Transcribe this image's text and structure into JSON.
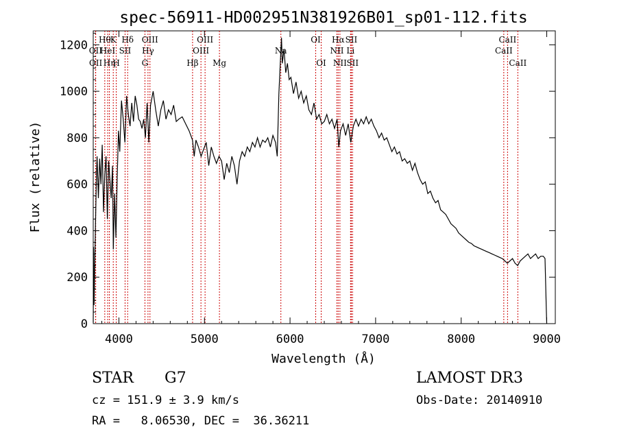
{
  "chart_data": {
    "type": "line",
    "title": "spec-56911-HD002951N381926B01_sp01-112.fits",
    "xlabel": "Wavelength (Å)",
    "ylabel": "Flux (relative)",
    "xlim": [
      3700,
      9100
    ],
    "ylim": [
      0,
      1260
    ],
    "x_ticks": [
      4000,
      5000,
      6000,
      7000,
      8000,
      9000
    ],
    "y_ticks": [
      0,
      200,
      400,
      600,
      800,
      1000,
      1200
    ],
    "grid": false,
    "series": [
      {
        "values": [
          [
            3700,
            5
          ],
          [
            3705,
            330
          ],
          [
            3710,
            80
          ],
          [
            3720,
            300
          ],
          [
            3735,
            600
          ],
          [
            3745,
            720
          ],
          [
            3760,
            540
          ],
          [
            3775,
            710
          ],
          [
            3790,
            600
          ],
          [
            3805,
            770
          ],
          [
            3820,
            480
          ],
          [
            3835,
            640
          ],
          [
            3850,
            720
          ],
          [
            3865,
            450
          ],
          [
            3880,
            700
          ],
          [
            3895,
            620
          ],
          [
            3910,
            540
          ],
          [
            3925,
            680
          ],
          [
            3935,
            320
          ],
          [
            3950,
            560
          ],
          [
            3965,
            370
          ],
          [
            3980,
            620
          ],
          [
            3995,
            830
          ],
          [
            4010,
            740
          ],
          [
            4030,
            960
          ],
          [
            4050,
            880
          ],
          [
            4070,
            780
          ],
          [
            4090,
            980
          ],
          [
            4110,
            900
          ],
          [
            4130,
            850
          ],
          [
            4150,
            950
          ],
          [
            4170,
            870
          ],
          [
            4190,
            980
          ],
          [
            4210,
            940
          ],
          [
            4230,
            880
          ],
          [
            4250,
            870
          ],
          [
            4270,
            840
          ],
          [
            4290,
            880
          ],
          [
            4310,
            800
          ],
          [
            4330,
            950
          ],
          [
            4350,
            780
          ],
          [
            4370,
            940
          ],
          [
            4400,
            1000
          ],
          [
            4430,
            920
          ],
          [
            4460,
            850
          ],
          [
            4490,
            920
          ],
          [
            4520,
            960
          ],
          [
            4550,
            880
          ],
          [
            4580,
            920
          ],
          [
            4610,
            900
          ],
          [
            4640,
            940
          ],
          [
            4670,
            870
          ],
          [
            4700,
            880
          ],
          [
            4740,
            890
          ],
          [
            4780,
            860
          ],
          [
            4820,
            830
          ],
          [
            4860,
            790
          ],
          [
            4880,
            720
          ],
          [
            4900,
            790
          ],
          [
            4930,
            760
          ],
          [
            4960,
            720
          ],
          [
            4990,
            750
          ],
          [
            5020,
            780
          ],
          [
            5050,
            680
          ],
          [
            5080,
            760
          ],
          [
            5110,
            720
          ],
          [
            5140,
            690
          ],
          [
            5170,
            720
          ],
          [
            5200,
            700
          ],
          [
            5230,
            620
          ],
          [
            5260,
            690
          ],
          [
            5290,
            650
          ],
          [
            5320,
            720
          ],
          [
            5350,
            680
          ],
          [
            5380,
            600
          ],
          [
            5410,
            700
          ],
          [
            5440,
            740
          ],
          [
            5470,
            720
          ],
          [
            5500,
            760
          ],
          [
            5530,
            740
          ],
          [
            5560,
            780
          ],
          [
            5590,
            760
          ],
          [
            5620,
            800
          ],
          [
            5650,
            760
          ],
          [
            5680,
            790
          ],
          [
            5710,
            780
          ],
          [
            5740,
            800
          ],
          [
            5770,
            760
          ],
          [
            5800,
            810
          ],
          [
            5830,
            780
          ],
          [
            5850,
            720
          ],
          [
            5870,
            990
          ],
          [
            5890,
            1150
          ],
          [
            5900,
            1230
          ],
          [
            5910,
            1120
          ],
          [
            5930,
            1180
          ],
          [
            5950,
            1080
          ],
          [
            5970,
            1120
          ],
          [
            5990,
            1050
          ],
          [
            6010,
            1060
          ],
          [
            6040,
            990
          ],
          [
            6070,
            1040
          ],
          [
            6100,
            970
          ],
          [
            6130,
            1000
          ],
          [
            6160,
            950
          ],
          [
            6190,
            980
          ],
          [
            6220,
            920
          ],
          [
            6250,
            900
          ],
          [
            6280,
            950
          ],
          [
            6310,
            880
          ],
          [
            6340,
            900
          ],
          [
            6370,
            860
          ],
          [
            6400,
            870
          ],
          [
            6430,
            900
          ],
          [
            6460,
            860
          ],
          [
            6490,
            880
          ],
          [
            6520,
            840
          ],
          [
            6550,
            880
          ],
          [
            6570,
            760
          ],
          [
            6590,
            830
          ],
          [
            6620,
            860
          ],
          [
            6650,
            810
          ],
          [
            6680,
            860
          ],
          [
            6710,
            780
          ],
          [
            6740,
            850
          ],
          [
            6770,
            880
          ],
          [
            6800,
            850
          ],
          [
            6830,
            880
          ],
          [
            6860,
            860
          ],
          [
            6890,
            890
          ],
          [
            6920,
            860
          ],
          [
            6950,
            880
          ],
          [
            6980,
            850
          ],
          [
            7010,
            830
          ],
          [
            7040,
            800
          ],
          [
            7070,
            820
          ],
          [
            7100,
            790
          ],
          [
            7130,
            800
          ],
          [
            7160,
            770
          ],
          [
            7190,
            740
          ],
          [
            7220,
            760
          ],
          [
            7250,
            730
          ],
          [
            7280,
            740
          ],
          [
            7310,
            700
          ],
          [
            7340,
            710
          ],
          [
            7370,
            690
          ],
          [
            7400,
            700
          ],
          [
            7430,
            660
          ],
          [
            7460,
            690
          ],
          [
            7490,
            650
          ],
          [
            7520,
            620
          ],
          [
            7550,
            600
          ],
          [
            7580,
            610
          ],
          [
            7610,
            560
          ],
          [
            7640,
            570
          ],
          [
            7670,
            540
          ],
          [
            7700,
            520
          ],
          [
            7730,
            530
          ],
          [
            7760,
            490
          ],
          [
            7790,
            480
          ],
          [
            7820,
            470
          ],
          [
            7850,
            450
          ],
          [
            7880,
            430
          ],
          [
            7910,
            420
          ],
          [
            7940,
            410
          ],
          [
            7970,
            390
          ],
          [
            8000,
            380
          ],
          [
            8030,
            370
          ],
          [
            8060,
            360
          ],
          [
            8090,
            350
          ],
          [
            8120,
            345
          ],
          [
            8150,
            335
          ],
          [
            8180,
            330
          ],
          [
            8210,
            325
          ],
          [
            8240,
            320
          ],
          [
            8270,
            315
          ],
          [
            8300,
            310
          ],
          [
            8330,
            305
          ],
          [
            8360,
            300
          ],
          [
            8390,
            295
          ],
          [
            8420,
            290
          ],
          [
            8450,
            285
          ],
          [
            8480,
            280
          ],
          [
            8510,
            270
          ],
          [
            8540,
            260
          ],
          [
            8570,
            270
          ],
          [
            8600,
            280
          ],
          [
            8630,
            260
          ],
          [
            8660,
            250
          ],
          [
            8690,
            270
          ],
          [
            8720,
            280
          ],
          [
            8750,
            290
          ],
          [
            8780,
            300
          ],
          [
            8810,
            280
          ],
          [
            8840,
            290
          ],
          [
            8870,
            300
          ],
          [
            8900,
            280
          ],
          [
            8930,
            290
          ],
          [
            8960,
            290
          ],
          [
            8980,
            280
          ],
          [
            8995,
            60
          ],
          [
            9000,
            0
          ]
        ]
      }
    ],
    "line_color": "#000000",
    "marker_color": "#cc0000",
    "line_markers": [
      {
        "x": 3727,
        "label": "OII",
        "row": 2
      },
      {
        "x": 3729,
        "label": "OII",
        "row": 3
      },
      {
        "x": 3835,
        "label": "Hθ",
        "row": 1
      },
      {
        "x": 3869,
        "label": "HeI",
        "row": 2
      },
      {
        "x": 3889,
        "label": "Hη",
        "row": 3
      },
      {
        "x": 3934,
        "label": "K",
        "row": 1
      },
      {
        "x": 3969,
        "label": "H",
        "row": 3
      },
      {
        "x": 4072,
        "label": "SII",
        "row": 2
      },
      {
        "x": 4102,
        "label": "Hδ",
        "row": 1
      },
      {
        "x": 4304,
        "label": "G",
        "row": 3
      },
      {
        "x": 4340,
        "label": "Hγ",
        "row": 2
      },
      {
        "x": 4363,
        "label": "OIII",
        "row": 1
      },
      {
        "x": 4861,
        "label": "Hβ",
        "row": 3
      },
      {
        "x": 4959,
        "label": "OIII",
        "row": 2
      },
      {
        "x": 5007,
        "label": "OIII",
        "row": 1
      },
      {
        "x": 5175,
        "label": "Mg",
        "row": 3
      },
      {
        "x": 5893,
        "label": "Na",
        "row": 2
      },
      {
        "x": 6300,
        "label": "OI",
        "row": 1
      },
      {
        "x": 6364,
        "label": "OI",
        "row": 3
      },
      {
        "x": 6548,
        "label": "NII",
        "row": 2
      },
      {
        "x": 6563,
        "label": "Hα",
        "row": 1
      },
      {
        "x": 6583,
        "label": "NII",
        "row": 3
      },
      {
        "x": 6707,
        "label": "Li",
        "row": 2
      },
      {
        "x": 6716,
        "label": "SII",
        "row": 1
      },
      {
        "x": 6731,
        "label": "SII",
        "row": 3
      },
      {
        "x": 8498,
        "label": "CaII",
        "row": 2
      },
      {
        "x": 8542,
        "label": "CaII",
        "row": 1
      },
      {
        "x": 8662,
        "label": "CaII",
        "row": 3
      }
    ]
  },
  "info": {
    "class": "STAR",
    "subclass": "G7",
    "survey": "LAMOST DR3",
    "cz": "cz = 151.9 ± 3.9 km/s",
    "obs_date": "Obs-Date: 20140910",
    "coords": "RA =   8.06530, DEC =  36.36211"
  }
}
